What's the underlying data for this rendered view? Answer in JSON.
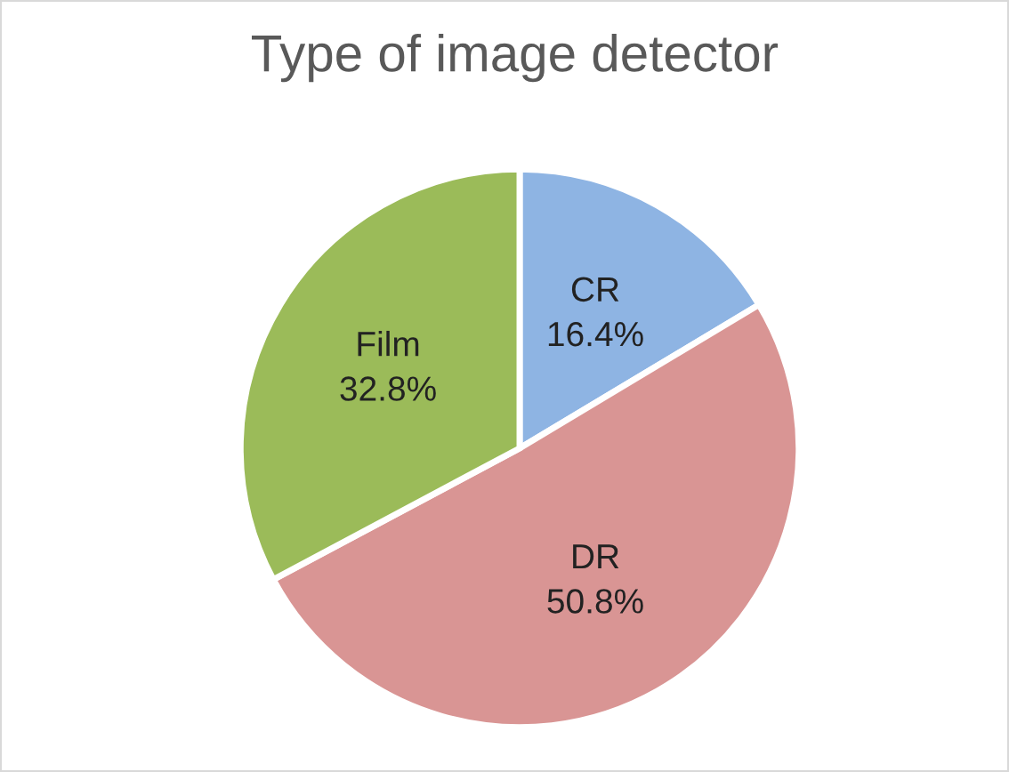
{
  "chart_data": {
    "type": "pie",
    "title": "Type of image detector",
    "categories": [
      "CR",
      "DR",
      "Film"
    ],
    "values": [
      16.4,
      50.8,
      32.8
    ],
    "value_labels": [
      "16.4%",
      "50.8%",
      "32.8%"
    ],
    "colors": [
      "#8eb4e3",
      "#d99594",
      "#9bbb59"
    ],
    "legend": false
  }
}
